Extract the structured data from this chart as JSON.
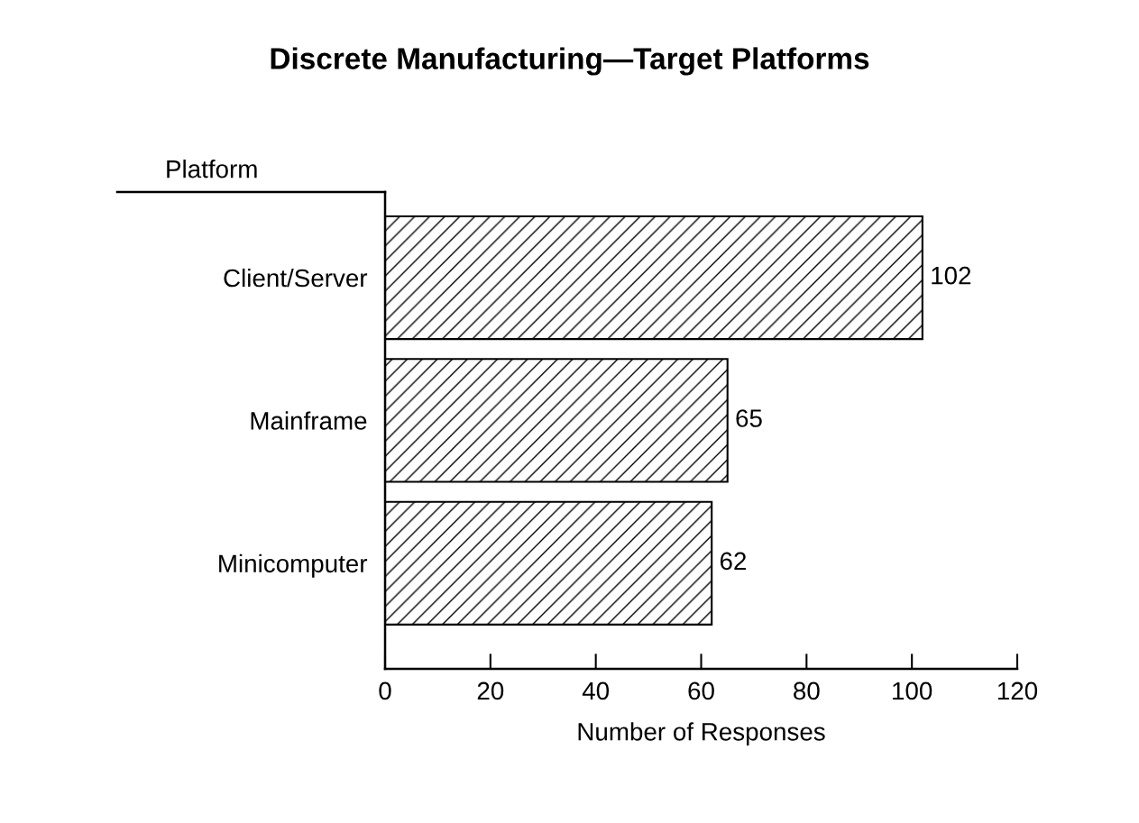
{
  "chart_data": {
    "type": "bar",
    "orientation": "horizontal",
    "title": "Discrete Manufacturing—Target Platforms",
    "ylabel": "Platform",
    "xlabel": "Number of Responses",
    "categories": [
      "Client/Server",
      "Mainframe",
      "Minicomputer"
    ],
    "values": [
      102,
      65,
      62
    ],
    "color": "#000000",
    "xlim": [
      0,
      120
    ],
    "xticks": [
      0,
      20,
      40,
      60,
      80,
      100,
      120
    ],
    "data_labels": true,
    "grid": false,
    "legend": false
  }
}
